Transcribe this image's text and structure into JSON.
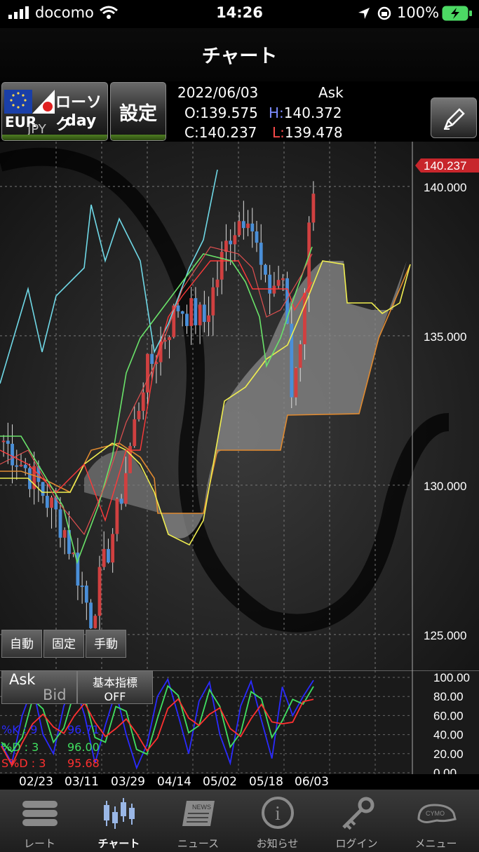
{
  "status_bar": {
    "carrier": "docomo",
    "time": "14:26",
    "battery": "100%"
  },
  "nav": {
    "title": "チャート"
  },
  "header": {
    "pair_base": "EUR",
    "pair_quote": "JPY",
    "chart_type": "ローソク",
    "period": "day",
    "settings_label": "設定",
    "date": "2022/06/03",
    "price_side": "Ask",
    "open_label": "O:",
    "open": "139.575",
    "high_label": "H:",
    "high": "140.372",
    "close_label": "C:",
    "close": "140.237",
    "low_label": "L:",
    "low": "139.478"
  },
  "price_axis": {
    "current_price": "140.237",
    "ticks": [
      "140.000",
      "135.000",
      "130.000",
      "125.000"
    ]
  },
  "mode_buttons": {
    "auto": "自動",
    "fixed": "固定",
    "manual": "手動"
  },
  "ask_bid": {
    "ask": "Ask",
    "bid": "Bid"
  },
  "indicator_toggle": {
    "label": "基本指標",
    "state": "OFF"
  },
  "stoch": {
    "k_label": "%K : 9",
    "k_value": "96.71",
    "d_label": "%D : 3",
    "d_value": "96.00",
    "sd_label": "S%D : 3",
    "sd_value": "95.68",
    "ticks": [
      "100.00",
      "80.00",
      "60.00",
      "40.00",
      "20.00",
      "0.00"
    ]
  },
  "date_axis": [
    "02/23",
    "03/11",
    "03/29",
    "04/14",
    "05/02",
    "05/18",
    "06/03"
  ],
  "tabs": [
    {
      "label": "レート",
      "icon": "rate-list-icon"
    },
    {
      "label": "チャート",
      "icon": "candlestick-icon",
      "active": true
    },
    {
      "label": "ニュース",
      "icon": "newspaper-icon"
    },
    {
      "label": "お知らせ",
      "icon": "info-icon"
    },
    {
      "label": "ログイン",
      "icon": "key-icon"
    },
    {
      "label": "メニュー",
      "icon": "cymo-menu-icon"
    }
  ],
  "colors": {
    "candle_up": "#d04040",
    "candle_down": "#4a8fd8",
    "stoch_k": "#2a2aff",
    "stoch_d": "#40e060",
    "stoch_sd": "#ff3030",
    "price_badge": "#c8262c"
  },
  "chart_data": {
    "type": "candlestick",
    "x": [
      "02/23",
      "03/11",
      "03/29",
      "04/14",
      "05/02",
      "05/18",
      "06/03"
    ],
    "ylim": [
      123.8,
      141.5
    ],
    "last_close": 140.237,
    "stoch": {
      "k": 96.71,
      "d": 96.0,
      "sd": 95.68,
      "ylim": [
        0,
        100
      ]
    }
  }
}
